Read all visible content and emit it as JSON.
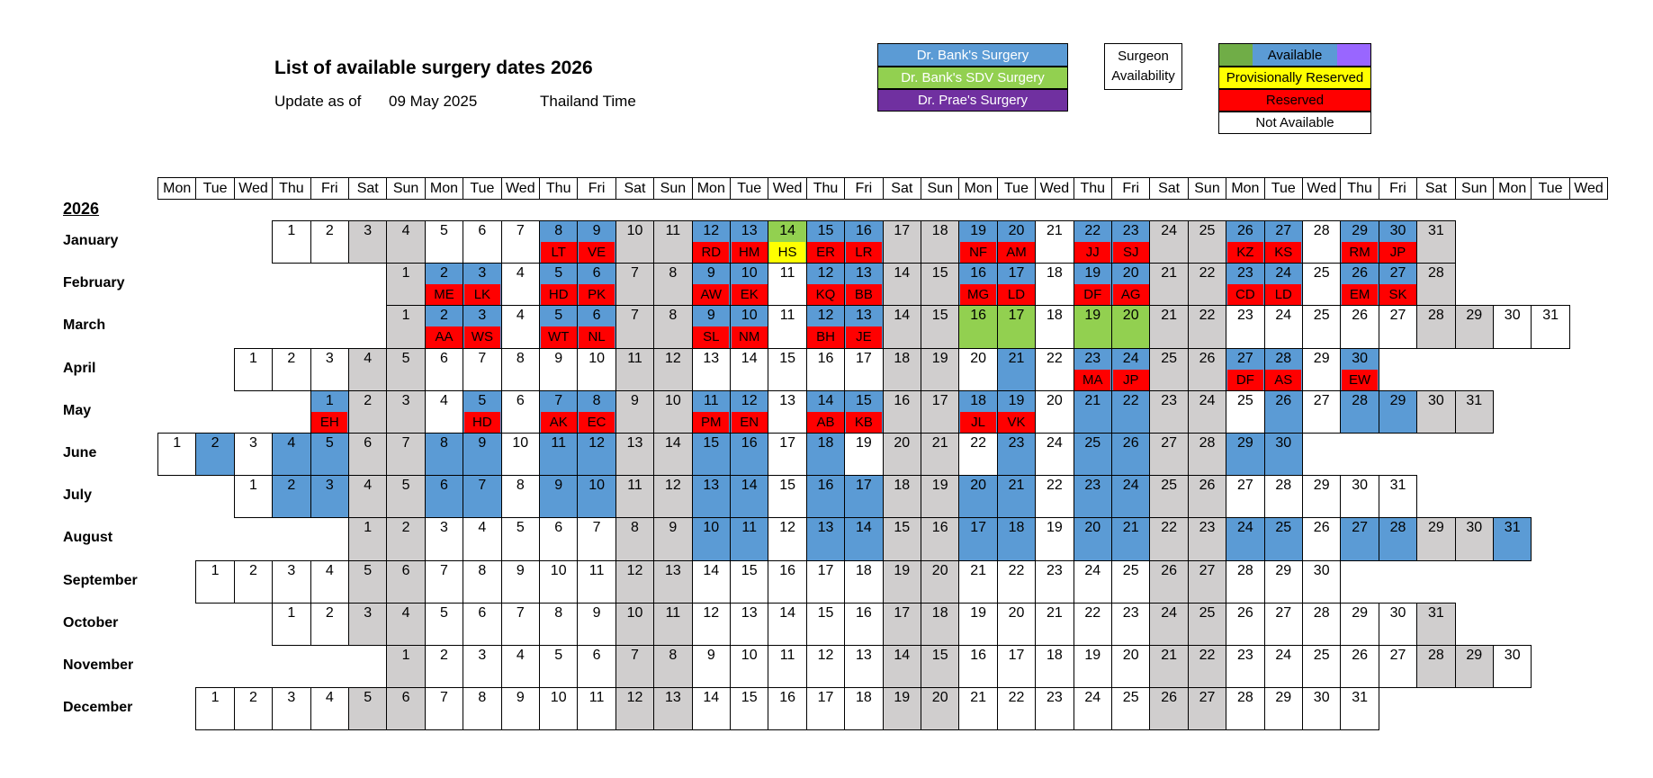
{
  "title": "List of available surgery dates 2026",
  "update": {
    "label": "Update as of",
    "date": "09 May 2025",
    "tz": "Thailand Time"
  },
  "legend": {
    "surgery": [
      {
        "label": "Dr. Bank's Surgery",
        "color": "#5b9bd5",
        "text_color": "#ffffff"
      },
      {
        "label": "Dr. Bank's SDV Surgery",
        "color": "#92d050",
        "text_color": "#ffffff"
      },
      {
        "label": "Dr. Prae's Surgery",
        "color": "#7030a0",
        "text_color": "#ffffff"
      }
    ],
    "surgeon_availability": [
      "Surgeon",
      "Availability"
    ],
    "status": [
      {
        "label": "Available",
        "color": "#ffffff"
      },
      {
        "label": "Provisionally Reserved",
        "color": "#ffff00"
      },
      {
        "label": "Reserved",
        "color": "#ff0000"
      },
      {
        "label": "Not Available",
        "color": "#ffffff"
      }
    ],
    "available_swatches": [
      "#70ad47",
      "#5b9bd5",
      "#9966ff"
    ]
  },
  "weekday_headers": [
    "Mon",
    "Tue",
    "Wed",
    "Thu",
    "Fri",
    "Sat",
    "Sun",
    "Mon",
    "Tue",
    "Wed",
    "Thu",
    "Fri",
    "Sat",
    "Sun",
    "Mon",
    "Tue",
    "Wed",
    "Thu",
    "Fri",
    "Sat",
    "Sun",
    "Mon",
    "Tue",
    "Wed",
    "Thu",
    "Fri",
    "Sat",
    "Sun",
    "Mon",
    "Tue",
    "Wed",
    "Thu",
    "Fri",
    "Sat",
    "Sun",
    "Mon",
    "Tue",
    "Wed"
  ],
  "year_label": "2026",
  "colors": {
    "weekend": "#d0cece",
    "bank": "#5b9bd5",
    "sdv": "#92d050",
    "white": "#ffffff"
  },
  "months": [
    {
      "name": "January",
      "days": 31,
      "start": 3,
      "blue": [
        8,
        9,
        12,
        13,
        14,
        15,
        16,
        19,
        20,
        22,
        23,
        26,
        27,
        29,
        30
      ],
      "green": [
        14
      ],
      "res": {
        "8": "LT",
        "9": "VE",
        "12": "RD",
        "13": "HM",
        "15": "ER",
        "16": "LR",
        "19": "NF",
        "20": "AM",
        "22": "JJ",
        "23": "SJ",
        "26": "KZ",
        "27": "KS",
        "29": "RM",
        "30": "JP"
      },
      "prov": {
        "14": "HS"
      }
    },
    {
      "name": "February",
      "days": 28,
      "start": 6,
      "blue": [
        2,
        3,
        5,
        6,
        9,
        10,
        12,
        13,
        16,
        17,
        19,
        20,
        23,
        24,
        26,
        27
      ],
      "green": [],
      "res": {
        "2": "ME",
        "3": "LK",
        "5": "HD",
        "6": "PK",
        "9": "AW",
        "10": "EK",
        "12": "KQ",
        "13": "BB",
        "16": "MG",
        "17": "LD",
        "19": "DF",
        "20": "AG",
        "23": "CD",
        "24": "LD",
        "26": "EM",
        "27": "SK"
      },
      "prov": {}
    },
    {
      "name": "March",
      "days": 31,
      "start": 6,
      "blue": [
        2,
        3,
        5,
        6,
        9,
        10,
        12,
        13
      ],
      "green": [
        16,
        17,
        19,
        20
      ],
      "res": {
        "2": "AA",
        "3": "WS",
        "5": "WT",
        "6": "NL",
        "9": "SL",
        "10": "NM",
        "12": "BH",
        "13": "JE"
      },
      "prov": {}
    },
    {
      "name": "April",
      "days": 30,
      "start": 2,
      "blue": [
        21,
        23,
        24,
        27,
        28,
        30
      ],
      "green": [],
      "res": {
        "23": "MA",
        "24": "JP",
        "27": "DF",
        "28": "AS",
        "30": "EW"
      },
      "prov": {}
    },
    {
      "name": "May",
      "days": 31,
      "start": 4,
      "blue": [
        1,
        5,
        7,
        8,
        11,
        12,
        14,
        15,
        18,
        19,
        21,
        22,
        26,
        28,
        29
      ],
      "green": [],
      "res": {
        "1": "EH",
        "5": "HD",
        "7": "AK",
        "8": "EC",
        "11": "PM",
        "12": "EN",
        "14": "AB",
        "15": "KB",
        "18": "JL",
        "19": "VK"
      },
      "prov": {}
    },
    {
      "name": "June",
      "days": 30,
      "start": 0,
      "blue": [
        2,
        4,
        5,
        8,
        9,
        11,
        12,
        15,
        16,
        18,
        23,
        25,
        26,
        29,
        30
      ],
      "green": [],
      "res": {},
      "prov": {}
    },
    {
      "name": "July",
      "days": 31,
      "start": 2,
      "blue": [
        2,
        3,
        6,
        7,
        9,
        10,
        13,
        14,
        16,
        17,
        20,
        21,
        23,
        24
      ],
      "green": [],
      "res": {},
      "prov": {}
    },
    {
      "name": "August",
      "days": 31,
      "start": 5,
      "blue": [
        10,
        11,
        13,
        14,
        17,
        18,
        20,
        21,
        24,
        25,
        27,
        28,
        31
      ],
      "green": [],
      "res": {},
      "prov": {}
    },
    {
      "name": "September",
      "days": 30,
      "start": 1,
      "blue": [],
      "green": [],
      "res": {},
      "prov": {}
    },
    {
      "name": "October",
      "days": 31,
      "start": 3,
      "blue": [],
      "green": [],
      "res": {},
      "prov": {}
    },
    {
      "name": "November",
      "days": 30,
      "start": 6,
      "blue": [],
      "green": [],
      "res": {},
      "prov": {}
    },
    {
      "name": "December",
      "days": 31,
      "start": 1,
      "blue": [],
      "green": [],
      "res": {},
      "prov": {}
    }
  ]
}
